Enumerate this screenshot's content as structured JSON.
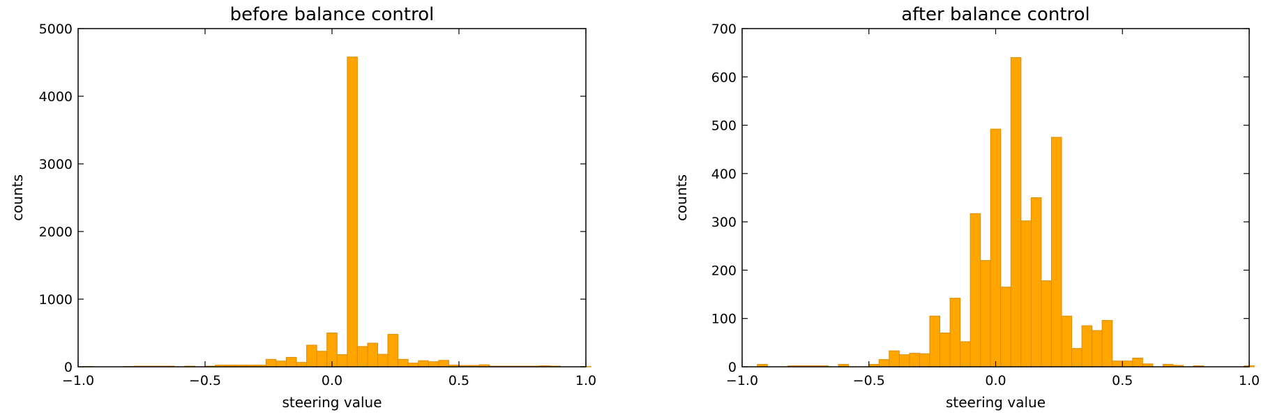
{
  "chart_data": [
    {
      "type": "bar",
      "title": "before balance control",
      "xlabel": "steering value",
      "ylabel": "counts",
      "xlim": [
        -1.0,
        1.0
      ],
      "ylim": [
        0,
        5000
      ],
      "x_ticks": [
        "−1.0",
        "−0.5",
        "0.0",
        "0.5",
        "1.0"
      ],
      "y_ticks": [
        "0",
        "1000",
        "2000",
        "3000",
        "4000",
        "5000"
      ],
      "bin_width": 0.04,
      "bin_start": -0.98,
      "color": "#ffa500",
      "edge_color": "#e08c00",
      "grid": false,
      "values": [
        5,
        0,
        0,
        0,
        5,
        10,
        10,
        10,
        10,
        0,
        10,
        0,
        10,
        25,
        25,
        25,
        25,
        25,
        110,
        85,
        140,
        65,
        320,
        230,
        500,
        180,
        4580,
        300,
        350,
        185,
        480,
        110,
        55,
        90,
        75,
        95,
        25,
        20,
        20,
        30,
        10,
        10,
        10,
        10,
        10,
        15,
        10,
        0,
        0,
        5
      ]
    },
    {
      "type": "bar",
      "title": "after balance control",
      "xlabel": "steering value",
      "ylabel": "counts",
      "xlim": [
        -1.0,
        1.0
      ],
      "ylim": [
        0,
        700
      ],
      "x_ticks": [
        "−1.0",
        "−0.5",
        "0.0",
        "0.5",
        "1.0"
      ],
      "y_ticks": [
        "0",
        "100",
        "200",
        "300",
        "400",
        "500",
        "600",
        "700"
      ],
      "bin_width": 0.04,
      "bin_start": -0.98,
      "color": "#ffa500",
      "edge_color": "#e08c00",
      "grid": false,
      "values": [
        0,
        5,
        0,
        0,
        2,
        2,
        2,
        2,
        0,
        5,
        0,
        0,
        5,
        15,
        33,
        25,
        28,
        27,
        105,
        70,
        142,
        52,
        317,
        220,
        492,
        165,
        640,
        302,
        350,
        178,
        475,
        105,
        38,
        85,
        75,
        96,
        12,
        12,
        18,
        6,
        0,
        5,
        3,
        0,
        2,
        0,
        0,
        0,
        0,
        2
      ]
    }
  ]
}
